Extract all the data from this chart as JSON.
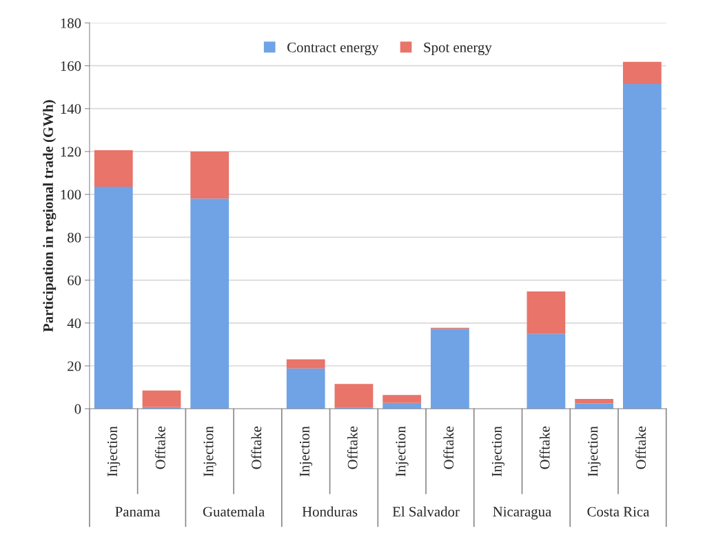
{
  "chart_data": {
    "type": "bar",
    "stacked": true,
    "ylabel": "Participation in regional trade (GWh)",
    "categories": [
      "Injection",
      "Offtake",
      "Injection",
      "Offtake",
      "Injection",
      "Offtake",
      "Injection",
      "Offtake",
      "Injection",
      "Offtake",
      "Injection",
      "Offtake"
    ],
    "annotations": [
      "Panama",
      "Guatemala",
      "Honduras",
      "El Salvador",
      "Nicaragua",
      "Costa Rica"
    ],
    "series": [
      {
        "name": "Contract energy",
        "color": "#6fa3e6",
        "values": [
          103.6,
          0.8,
          98.0,
          null,
          18.8,
          0.5,
          2.7,
          37.3,
          null,
          34.9,
          2.5,
          151.5
        ]
      },
      {
        "name": "Spot energy",
        "color": "#e8746a",
        "values": [
          17.0,
          7.7,
          22.0,
          null,
          4.3,
          11.1,
          3.7,
          0.5,
          null,
          19.8,
          2.1,
          10.3
        ]
      }
    ],
    "ylim": [
      0,
      180
    ],
    "yticks": [
      0,
      20,
      40,
      60,
      80,
      100,
      120,
      140,
      160,
      180
    ],
    "grid": "y",
    "legend": "top"
  }
}
